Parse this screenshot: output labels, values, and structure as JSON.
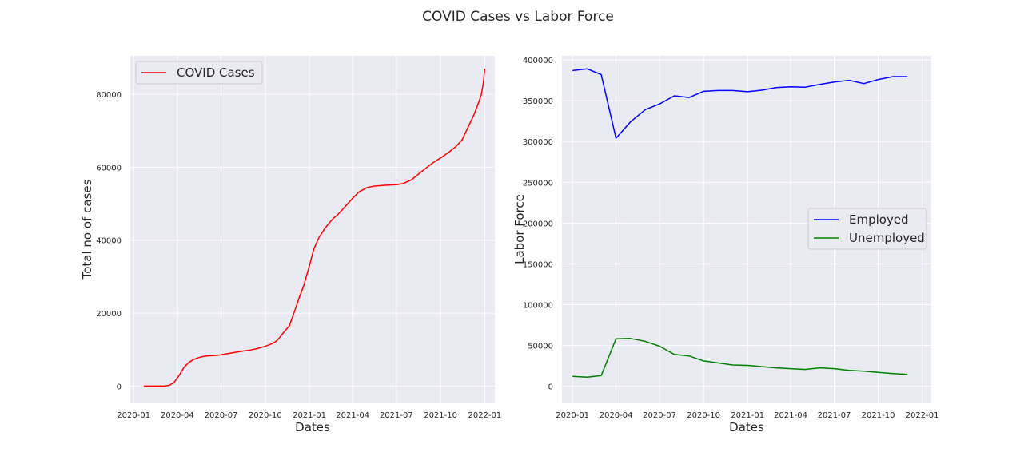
{
  "figure": {
    "title": "COVID Cases vs Labor Force"
  },
  "chart_data": [
    {
      "type": "line",
      "title": "",
      "xlabel": "Dates",
      "ylabel": "Total no of cases",
      "x_axis": "date",
      "xlim": [
        "2019-12-25",
        "2022-01-22"
      ],
      "ylim": [
        -4500,
        90500
      ],
      "xticks": [
        "2020-01-01",
        "2020-04-01",
        "2020-07-01",
        "2020-10-01",
        "2021-01-01",
        "2021-04-01",
        "2021-07-01",
        "2021-10-01",
        "2022-01-01"
      ],
      "xtick_labels": [
        "2020-01",
        "2020-04",
        "2020-07",
        "2020-10",
        "2021-01",
        "2021-04",
        "2021-07",
        "2021-10",
        "2022-01"
      ],
      "yticks": [
        0,
        20000,
        40000,
        60000,
        80000
      ],
      "ytick_labels": [
        "0",
        "20000",
        "40000",
        "60000",
        "80000"
      ],
      "grid": true,
      "legend": "upper-left",
      "series": [
        {
          "name": "COVID Cases",
          "color": "#ff0000",
          "x": [
            "2020-01-22",
            "2020-02-15",
            "2020-03-05",
            "2020-03-15",
            "2020-03-25",
            "2020-04-05",
            "2020-04-15",
            "2020-04-25",
            "2020-05-05",
            "2020-05-15",
            "2020-05-25",
            "2020-06-05",
            "2020-06-20",
            "2020-07-01",
            "2020-07-15",
            "2020-08-01",
            "2020-08-15",
            "2020-09-01",
            "2020-09-15",
            "2020-10-01",
            "2020-10-15",
            "2020-10-25",
            "2020-11-01",
            "2020-11-10",
            "2020-11-20",
            "2020-12-01",
            "2020-12-10",
            "2020-12-20",
            "2021-01-01",
            "2021-01-10",
            "2021-01-20",
            "2021-02-01",
            "2021-02-10",
            "2021-02-20",
            "2021-03-01",
            "2021-03-15",
            "2021-04-01",
            "2021-04-15",
            "2021-05-01",
            "2021-05-15",
            "2021-06-01",
            "2021-06-15",
            "2021-07-01",
            "2021-07-15",
            "2021-08-01",
            "2021-08-15",
            "2021-09-01",
            "2021-09-15",
            "2021-10-01",
            "2021-10-15",
            "2021-11-01",
            "2021-11-15",
            "2021-12-01",
            "2021-12-10",
            "2021-12-20",
            "2021-12-25",
            "2021-12-29",
            "2022-01-01"
          ],
          "y": [
            0,
            0,
            0,
            200,
            1000,
            3000,
            5200,
            6500,
            7300,
            7800,
            8100,
            8300,
            8400,
            8600,
            8900,
            9300,
            9600,
            9900,
            10300,
            10900,
            11600,
            12400,
            13500,
            15000,
            16500,
            20500,
            24000,
            27500,
            33000,
            37500,
            40500,
            43000,
            44500,
            46000,
            47000,
            49000,
            51500,
            53300,
            54400,
            54800,
            55000,
            55100,
            55200,
            55500,
            56500,
            58000,
            59800,
            61200,
            62500,
            63800,
            65500,
            67500,
            72000,
            74500,
            78000,
            80000,
            83000,
            87000
          ]
        }
      ]
    },
    {
      "type": "line",
      "title": "",
      "xlabel": "Dates",
      "ylabel": "Labor Force",
      "x_axis": "date",
      "xlim": [
        "2019-12-10",
        "2022-01-20"
      ],
      "ylim": [
        -20000,
        405000
      ],
      "xticks": [
        "2020-01-01",
        "2020-04-01",
        "2020-07-01",
        "2020-10-01",
        "2021-01-01",
        "2021-04-01",
        "2021-07-01",
        "2021-10-01",
        "2022-01-01"
      ],
      "xtick_labels": [
        "2020-01",
        "2020-04",
        "2020-07",
        "2020-10",
        "2021-01",
        "2021-04",
        "2021-07",
        "2021-10",
        "2022-01"
      ],
      "yticks": [
        0,
        50000,
        100000,
        150000,
        200000,
        250000,
        300000,
        350000,
        400000
      ],
      "ytick_labels": [
        "0",
        "50000",
        "100000",
        "150000",
        "200000",
        "250000",
        "300000",
        "350000",
        "400000"
      ],
      "grid": true,
      "legend": "center-right",
      "series": [
        {
          "name": "Employed",
          "color": "#0000ff",
          "x": [
            "2020-01-01",
            "2020-02-01",
            "2020-03-01",
            "2020-04-01",
            "2020-05-01",
            "2020-06-01",
            "2020-07-01",
            "2020-08-01",
            "2020-09-01",
            "2020-10-01",
            "2020-11-01",
            "2020-12-01",
            "2021-01-01",
            "2021-02-01",
            "2021-03-01",
            "2021-04-01",
            "2021-05-01",
            "2021-06-01",
            "2021-07-01",
            "2021-08-01",
            "2021-09-01",
            "2021-10-01",
            "2021-11-01",
            "2021-12-01"
          ],
          "y": [
            387000,
            389000,
            382000,
            304000,
            324000,
            339000,
            346000,
            356000,
            354000,
            361500,
            362500,
            362500,
            361000,
            363000,
            366000,
            367000,
            366500,
            370000,
            373000,
            375000,
            371000,
            376000,
            379500,
            379500
          ]
        },
        {
          "name": "Unemployed",
          "color": "#008000",
          "x": [
            "2020-01-01",
            "2020-02-01",
            "2020-03-01",
            "2020-04-01",
            "2020-05-01",
            "2020-06-01",
            "2020-07-01",
            "2020-08-01",
            "2020-09-01",
            "2020-10-01",
            "2020-11-01",
            "2020-12-01",
            "2021-01-01",
            "2021-02-01",
            "2021-03-01",
            "2021-04-01",
            "2021-05-01",
            "2021-06-01",
            "2021-07-01",
            "2021-08-01",
            "2021-09-01",
            "2021-10-01",
            "2021-11-01",
            "2021-12-01"
          ],
          "y": [
            12000,
            11000,
            13000,
            58000,
            58500,
            55000,
            49000,
            39000,
            37000,
            31000,
            28500,
            26000,
            25500,
            24000,
            22500,
            21500,
            20500,
            22500,
            21500,
            19500,
            18500,
            17000,
            15500,
            14500
          ]
        }
      ]
    }
  ]
}
